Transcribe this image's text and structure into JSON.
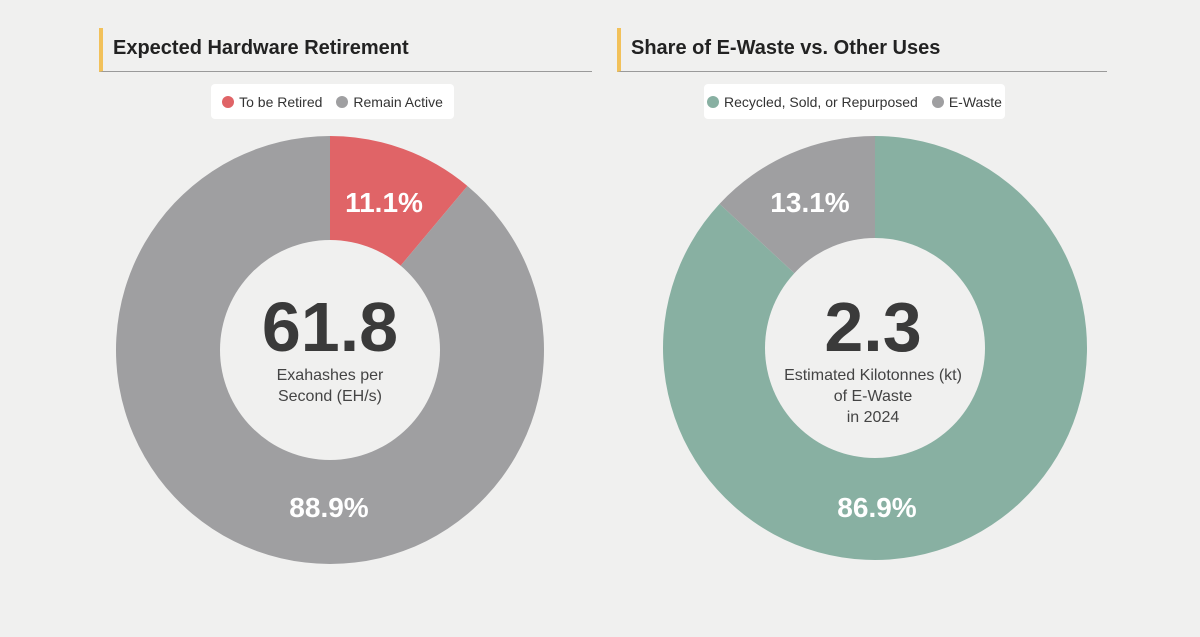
{
  "colors": {
    "retired": "#e06467",
    "remain_active": "#9f9fa1",
    "recycled": "#88b0a2",
    "ewaste": "#9f9fa1",
    "hole": "#f0f0ef",
    "accent": "#f2c15a"
  },
  "chart_data": [
    {
      "type": "pie",
      "title": "Expected Hardware Retirement",
      "legend": [
        "To be Retired",
        "Remain Active"
      ],
      "categories": [
        "To be Retired",
        "Remain Active"
      ],
      "values": [
        11.1,
        88.9
      ],
      "labels": [
        "11.1%",
        "88.9%"
      ],
      "center_value": "61.8",
      "center_label": "Exahashes per\nSecond (EH/s)"
    },
    {
      "type": "pie",
      "title": "Share of E-Waste vs. Other Uses",
      "legend": [
        "Recycled, Sold, or Repurposed",
        "E-Waste"
      ],
      "categories": [
        "Recycled, Sold, or Repurposed",
        "E-Waste"
      ],
      "values": [
        86.9,
        13.1
      ],
      "labels": [
        "86.9%",
        "13.1%"
      ],
      "center_value": "2.3",
      "center_label": "Estimated Kilotonnes (kt)\nof E-Waste\nin 2024"
    }
  ]
}
